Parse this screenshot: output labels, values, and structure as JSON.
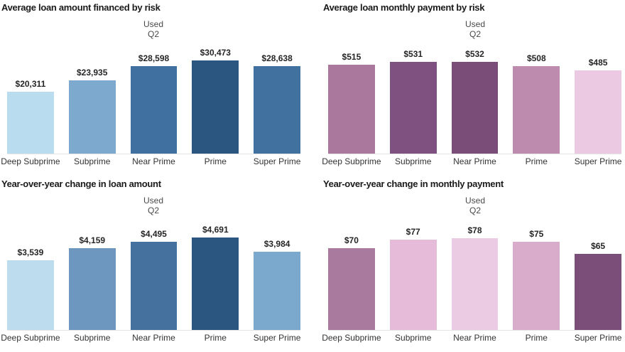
{
  "dashboard": {
    "background": "#ffffff",
    "text_colors": {
      "title": "#1a1a1a",
      "value_label": "#252525",
      "category_label": "#333333",
      "annotation": "#4a4a4a"
    }
  },
  "chart_data": [
    {
      "type": "bar",
      "panel": "top-left",
      "title": "Average loan amount financed by risk",
      "categories": [
        "Deep Subprime",
        "Subprime",
        "Near Prime",
        "Prime",
        "Super Prime"
      ],
      "values": [
        20311,
        23935,
        28598,
        30473,
        28638
      ],
      "value_labels": [
        "$20,311",
        "$23,935",
        "$28,598",
        "$30,473",
        "$28,638"
      ],
      "bar_colors": [
        "#b9ddef",
        "#7da9ce",
        "#3f709f",
        "#2a567f",
        "#41719e"
      ],
      "annotation": [
        "Used",
        "Q2"
      ],
      "annotation_target": "Near Prime",
      "xlabel": "",
      "ylabel": "",
      "ylim": [
        0,
        36000
      ],
      "grid": false,
      "legend": "none"
    },
    {
      "type": "bar",
      "panel": "top-right",
      "title": "Average loan monthly payment by risk",
      "categories": [
        "Deep Subprime",
        "Subprime",
        "Near Prime",
        "Prime",
        "Super Prime"
      ],
      "values": [
        515,
        531,
        532,
        508,
        485
      ],
      "value_labels": [
        "$515",
        "$531",
        "$532",
        "$508",
        "$485"
      ],
      "bar_colors": [
        "#aa789d",
        "#7f5180",
        "#7a4c78",
        "#bd8bad",
        "#ecc9e3"
      ],
      "annotation": [
        "Used",
        "Q2"
      ],
      "annotation_target": "Near Prime",
      "xlabel": "",
      "ylabel": "",
      "ylim": [
        0,
        640
      ],
      "grid": false,
      "legend": "none"
    },
    {
      "type": "bar",
      "panel": "bottom-left",
      "title": "Year-over-year change in loan amount",
      "categories": [
        "Deep Subprime",
        "Subprime",
        "Near Prime",
        "Prime",
        "Super Prime"
      ],
      "values": [
        3539,
        4159,
        4495,
        4691,
        3984
      ],
      "value_labels": [
        "$3,539",
        "$4,159",
        "$4,495",
        "$4,691",
        "$3,984"
      ],
      "bar_colors": [
        "#bdddee",
        "#6d97be",
        "#44719e",
        "#2b5680",
        "#7aa9cd"
      ],
      "annotation": [
        "Used",
        "Q2"
      ],
      "annotation_target": "Near Prime",
      "xlabel": "",
      "ylabel": "",
      "ylim": [
        0,
        5600
      ],
      "grid": false,
      "legend": "none"
    },
    {
      "type": "bar",
      "panel": "bottom-right",
      "title": "Year-over-year change in monthly payment",
      "categories": [
        "Deep Subprime",
        "Subprime",
        "Near Prime",
        "Prime",
        "Super Prime"
      ],
      "values": [
        70,
        77,
        78,
        75,
        65
      ],
      "value_labels": [
        "$70",
        "$77",
        "$78",
        "$75",
        "$65"
      ],
      "bar_colors": [
        "#a97a9d",
        "#e5bbd9",
        "#ebcae3",
        "#d9accc",
        "#7a4e78"
      ],
      "annotation": [
        "Used",
        "Q2"
      ],
      "annotation_target": "Near Prime",
      "xlabel": "",
      "ylabel": "",
      "ylim": [
        0,
        94
      ],
      "grid": false,
      "legend": "none"
    }
  ]
}
